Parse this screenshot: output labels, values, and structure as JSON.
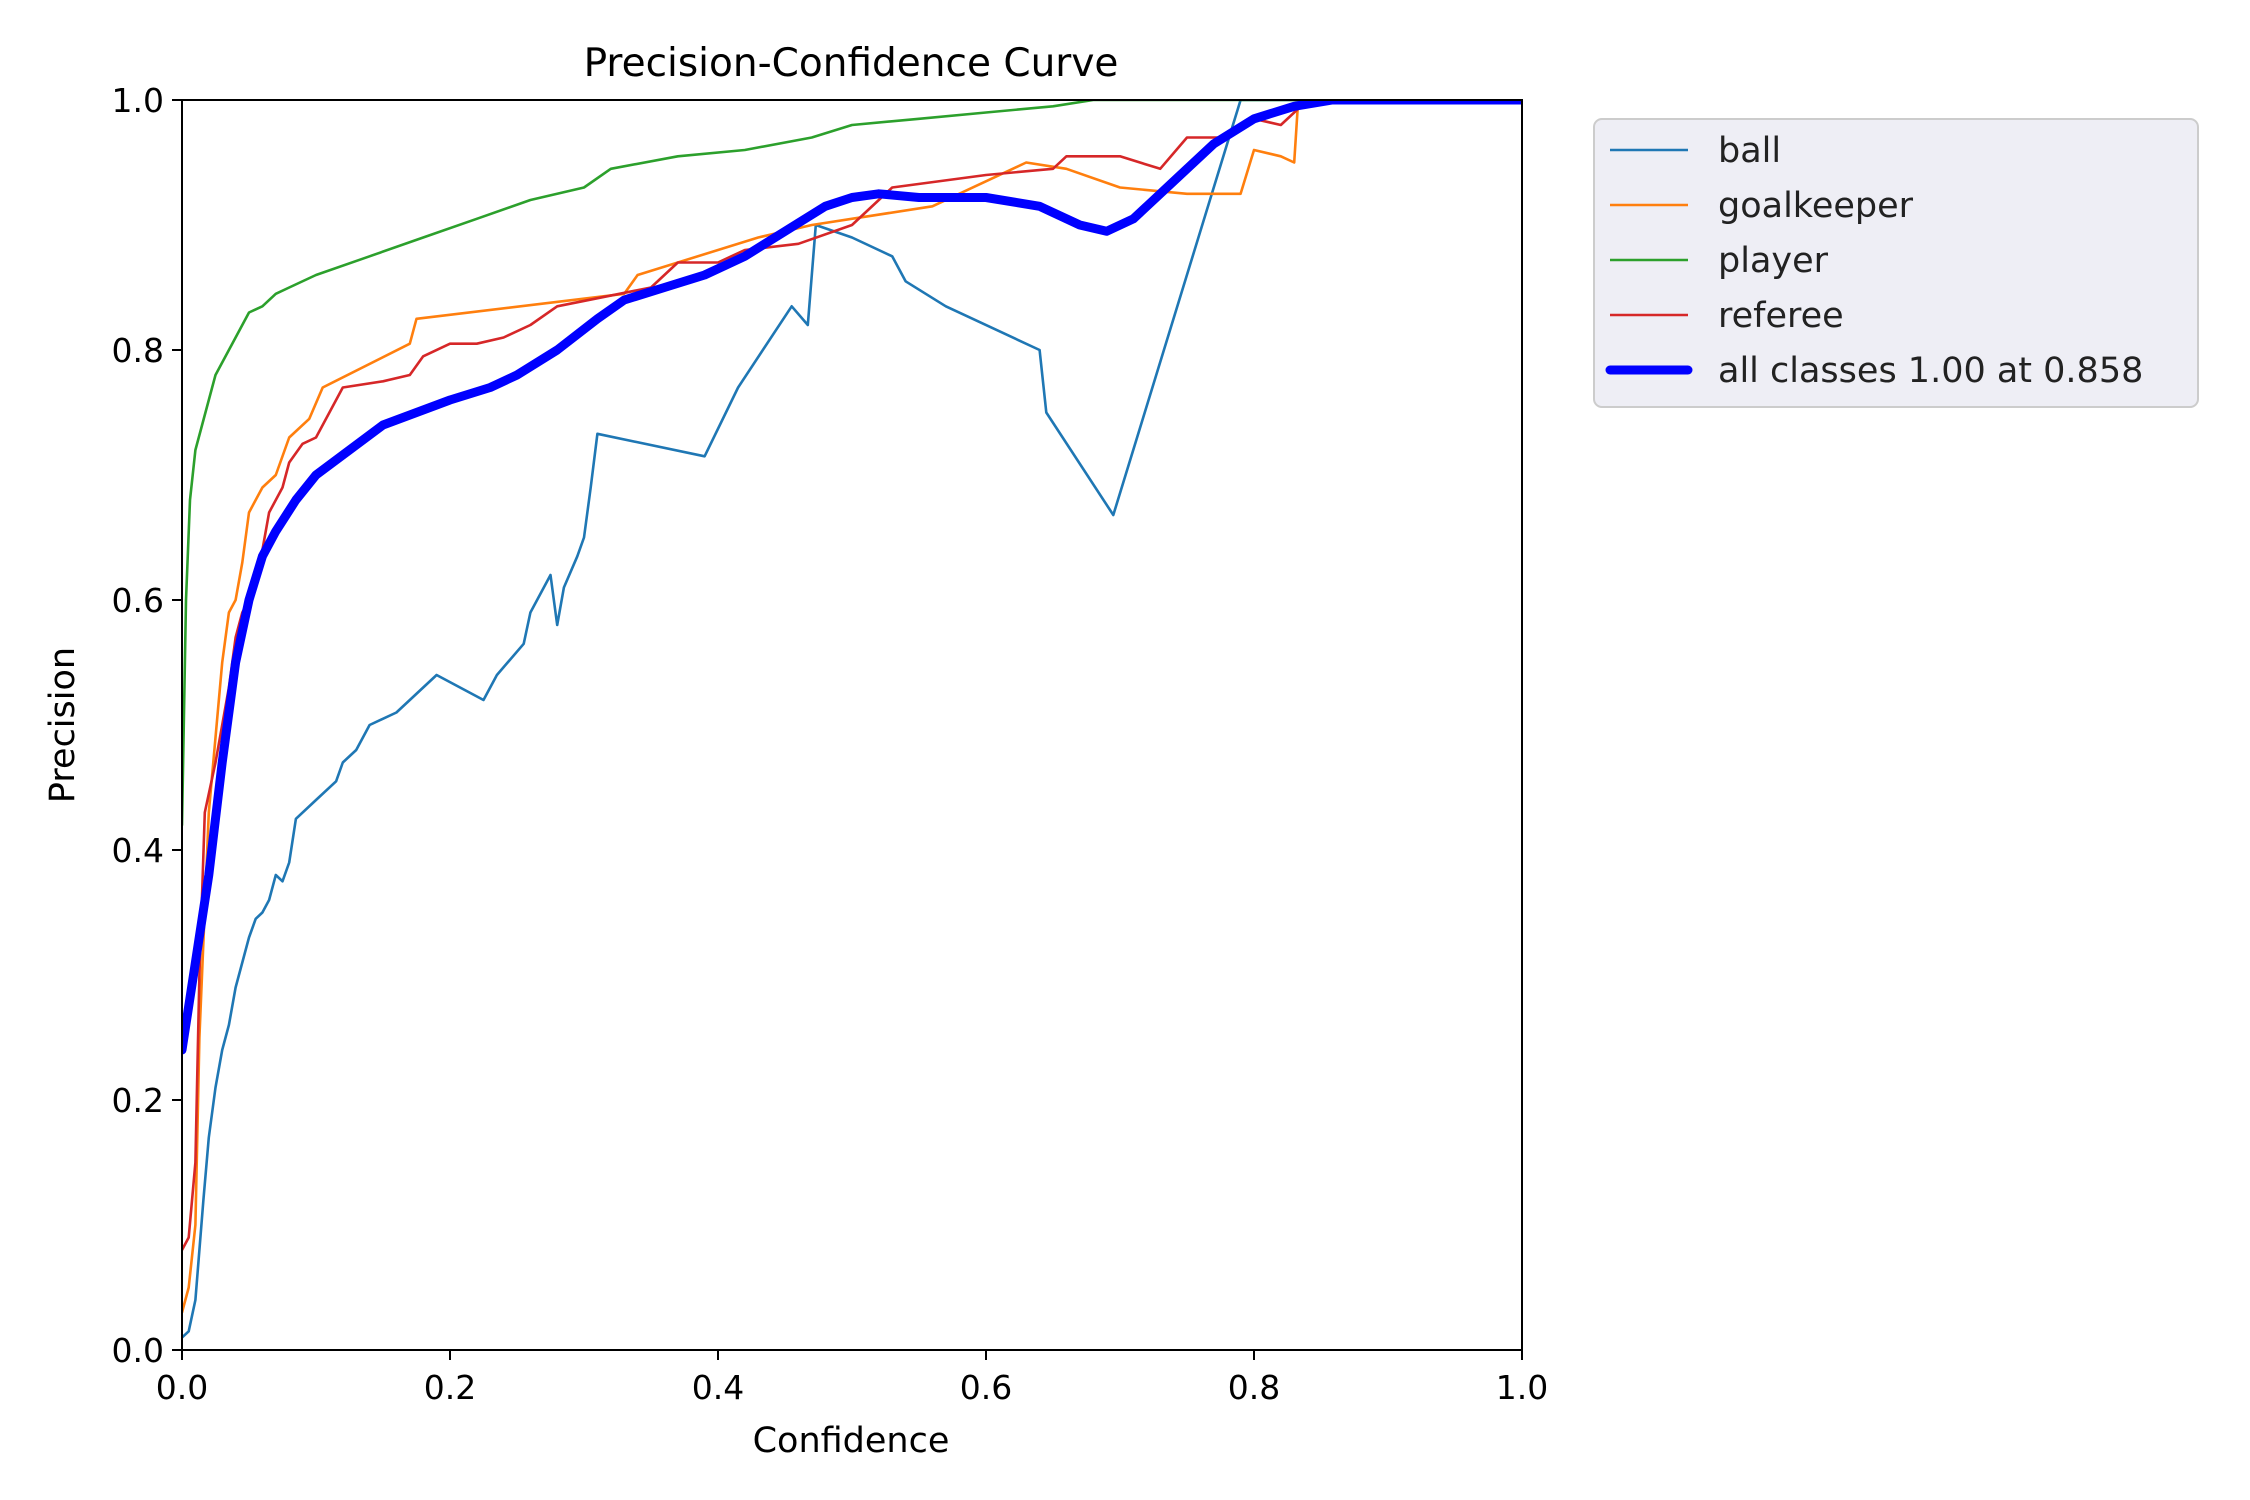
{
  "chart_data": {
    "type": "line",
    "title": "Precision-Confidence Curve",
    "xlabel": "Confidence",
    "ylabel": "Precision",
    "xlim": [
      0,
      1
    ],
    "ylim": [
      0,
      1
    ],
    "xticks": [
      "0.0",
      "0.2",
      "0.4",
      "0.6",
      "0.8",
      "1.0"
    ],
    "yticks": [
      "0.0",
      "0.2",
      "0.4",
      "0.6",
      "0.8",
      "1.0"
    ],
    "grid": false,
    "legend_position": "outside-top-right",
    "series": [
      {
        "name": "ball",
        "color": "#1f77b4",
        "width": "thin",
        "points": [
          [
            0.0,
            0.01
          ],
          [
            0.005,
            0.015
          ],
          [
            0.01,
            0.04
          ],
          [
            0.013,
            0.08
          ],
          [
            0.016,
            0.12
          ],
          [
            0.02,
            0.17
          ],
          [
            0.025,
            0.21
          ],
          [
            0.03,
            0.24
          ],
          [
            0.035,
            0.26
          ],
          [
            0.04,
            0.29
          ],
          [
            0.045,
            0.31
          ],
          [
            0.05,
            0.33
          ],
          [
            0.055,
            0.345
          ],
          [
            0.06,
            0.35
          ],
          [
            0.065,
            0.36
          ],
          [
            0.07,
            0.38
          ],
          [
            0.075,
            0.375
          ],
          [
            0.08,
            0.39
          ],
          [
            0.085,
            0.425
          ],
          [
            0.1,
            0.44
          ],
          [
            0.115,
            0.455
          ],
          [
            0.12,
            0.47
          ],
          [
            0.13,
            0.48
          ],
          [
            0.14,
            0.5
          ],
          [
            0.16,
            0.51
          ],
          [
            0.19,
            0.54
          ],
          [
            0.225,
            0.52
          ],
          [
            0.235,
            0.54
          ],
          [
            0.255,
            0.565
          ],
          [
            0.26,
            0.59
          ],
          [
            0.27,
            0.61
          ],
          [
            0.275,
            0.62
          ],
          [
            0.28,
            0.58
          ],
          [
            0.285,
            0.61
          ],
          [
            0.295,
            0.635
          ],
          [
            0.3,
            0.65
          ],
          [
            0.305,
            0.69
          ],
          [
            0.31,
            0.733
          ],
          [
            0.39,
            0.715
          ],
          [
            0.415,
            0.77
          ],
          [
            0.455,
            0.835
          ],
          [
            0.467,
            0.82
          ],
          [
            0.473,
            0.9
          ],
          [
            0.5,
            0.89
          ],
          [
            0.53,
            0.875
          ],
          [
            0.54,
            0.855
          ],
          [
            0.57,
            0.835
          ],
          [
            0.64,
            0.8
          ],
          [
            0.645,
            0.75
          ],
          [
            0.695,
            0.668
          ],
          [
            0.79,
            1.0
          ],
          [
            1.0,
            1.0
          ]
        ]
      },
      {
        "name": "goalkeeper",
        "color": "#ff7f0e",
        "width": "thin",
        "points": [
          [
            0.0,
            0.03
          ],
          [
            0.005,
            0.05
          ],
          [
            0.01,
            0.1
          ],
          [
            0.013,
            0.25
          ],
          [
            0.02,
            0.43
          ],
          [
            0.03,
            0.55
          ],
          [
            0.035,
            0.59
          ],
          [
            0.04,
            0.6
          ],
          [
            0.045,
            0.63
          ],
          [
            0.05,
            0.67
          ],
          [
            0.06,
            0.69
          ],
          [
            0.07,
            0.7
          ],
          [
            0.08,
            0.73
          ],
          [
            0.095,
            0.745
          ],
          [
            0.105,
            0.77
          ],
          [
            0.17,
            0.805
          ],
          [
            0.175,
            0.825
          ],
          [
            0.33,
            0.845
          ],
          [
            0.34,
            0.86
          ],
          [
            0.43,
            0.89
          ],
          [
            0.47,
            0.9
          ],
          [
            0.56,
            0.915
          ],
          [
            0.63,
            0.95
          ],
          [
            0.66,
            0.945
          ],
          [
            0.7,
            0.93
          ],
          [
            0.75,
            0.925
          ],
          [
            0.79,
            0.925
          ],
          [
            0.8,
            0.96
          ],
          [
            0.82,
            0.955
          ],
          [
            0.83,
            0.95
          ],
          [
            0.833,
            1.0
          ],
          [
            1.0,
            1.0
          ]
        ]
      },
      {
        "name": "player",
        "color": "#2ca02c",
        "width": "thin",
        "points": [
          [
            0.0,
            0.42
          ],
          [
            0.003,
            0.6
          ],
          [
            0.006,
            0.68
          ],
          [
            0.01,
            0.72
          ],
          [
            0.015,
            0.74
          ],
          [
            0.02,
            0.76
          ],
          [
            0.025,
            0.78
          ],
          [
            0.03,
            0.79
          ],
          [
            0.035,
            0.8
          ],
          [
            0.045,
            0.82
          ],
          [
            0.05,
            0.83
          ],
          [
            0.06,
            0.835
          ],
          [
            0.07,
            0.845
          ],
          [
            0.08,
            0.85
          ],
          [
            0.1,
            0.86
          ],
          [
            0.14,
            0.875
          ],
          [
            0.18,
            0.89
          ],
          [
            0.22,
            0.905
          ],
          [
            0.26,
            0.92
          ],
          [
            0.3,
            0.93
          ],
          [
            0.32,
            0.945
          ],
          [
            0.37,
            0.955
          ],
          [
            0.42,
            0.96
          ],
          [
            0.47,
            0.97
          ],
          [
            0.5,
            0.98
          ],
          [
            0.55,
            0.985
          ],
          [
            0.6,
            0.99
          ],
          [
            0.65,
            0.995
          ],
          [
            0.68,
            1.0
          ],
          [
            1.0,
            1.0
          ]
        ]
      },
      {
        "name": "referee",
        "color": "#d62728",
        "width": "thin",
        "points": [
          [
            0.0,
            0.08
          ],
          [
            0.005,
            0.09
          ],
          [
            0.01,
            0.15
          ],
          [
            0.013,
            0.3
          ],
          [
            0.017,
            0.43
          ],
          [
            0.025,
            0.47
          ],
          [
            0.03,
            0.5
          ],
          [
            0.035,
            0.53
          ],
          [
            0.04,
            0.57
          ],
          [
            0.045,
            0.59
          ],
          [
            0.05,
            0.6
          ],
          [
            0.055,
            0.62
          ],
          [
            0.06,
            0.64
          ],
          [
            0.065,
            0.67
          ],
          [
            0.075,
            0.69
          ],
          [
            0.08,
            0.71
          ],
          [
            0.09,
            0.725
          ],
          [
            0.1,
            0.73
          ],
          [
            0.11,
            0.75
          ],
          [
            0.12,
            0.77
          ],
          [
            0.15,
            0.775
          ],
          [
            0.17,
            0.78
          ],
          [
            0.18,
            0.795
          ],
          [
            0.2,
            0.805
          ],
          [
            0.22,
            0.805
          ],
          [
            0.24,
            0.81
          ],
          [
            0.26,
            0.82
          ],
          [
            0.28,
            0.835
          ],
          [
            0.35,
            0.85
          ],
          [
            0.37,
            0.87
          ],
          [
            0.4,
            0.87
          ],
          [
            0.42,
            0.88
          ],
          [
            0.46,
            0.885
          ],
          [
            0.5,
            0.9
          ],
          [
            0.53,
            0.93
          ],
          [
            0.6,
            0.94
          ],
          [
            0.65,
            0.945
          ],
          [
            0.66,
            0.955
          ],
          [
            0.7,
            0.955
          ],
          [
            0.73,
            0.945
          ],
          [
            0.75,
            0.97
          ],
          [
            0.78,
            0.97
          ],
          [
            0.8,
            0.985
          ],
          [
            0.82,
            0.98
          ],
          [
            0.84,
            1.0
          ],
          [
            1.0,
            1.0
          ]
        ]
      },
      {
        "name": "all classes 1.00 at 0.858",
        "color": "#0000ff",
        "width": "thick",
        "points": [
          [
            0.0,
            0.24
          ],
          [
            0.01,
            0.31
          ],
          [
            0.02,
            0.38
          ],
          [
            0.03,
            0.47
          ],
          [
            0.04,
            0.55
          ],
          [
            0.05,
            0.6
          ],
          [
            0.06,
            0.635
          ],
          [
            0.07,
            0.655
          ],
          [
            0.085,
            0.68
          ],
          [
            0.1,
            0.7
          ],
          [
            0.125,
            0.72
          ],
          [
            0.15,
            0.74
          ],
          [
            0.175,
            0.75
          ],
          [
            0.2,
            0.76
          ],
          [
            0.23,
            0.77
          ],
          [
            0.25,
            0.78
          ],
          [
            0.28,
            0.8
          ],
          [
            0.31,
            0.825
          ],
          [
            0.33,
            0.84
          ],
          [
            0.36,
            0.85
          ],
          [
            0.39,
            0.86
          ],
          [
            0.42,
            0.875
          ],
          [
            0.45,
            0.895
          ],
          [
            0.48,
            0.915
          ],
          [
            0.5,
            0.922
          ],
          [
            0.52,
            0.925
          ],
          [
            0.55,
            0.922
          ],
          [
            0.6,
            0.922
          ],
          [
            0.64,
            0.915
          ],
          [
            0.67,
            0.9
          ],
          [
            0.69,
            0.895
          ],
          [
            0.71,
            0.905
          ],
          [
            0.74,
            0.935
          ],
          [
            0.77,
            0.965
          ],
          [
            0.8,
            0.985
          ],
          [
            0.83,
            0.995
          ],
          [
            0.858,
            1.0
          ],
          [
            1.0,
            1.0
          ]
        ]
      }
    ]
  }
}
